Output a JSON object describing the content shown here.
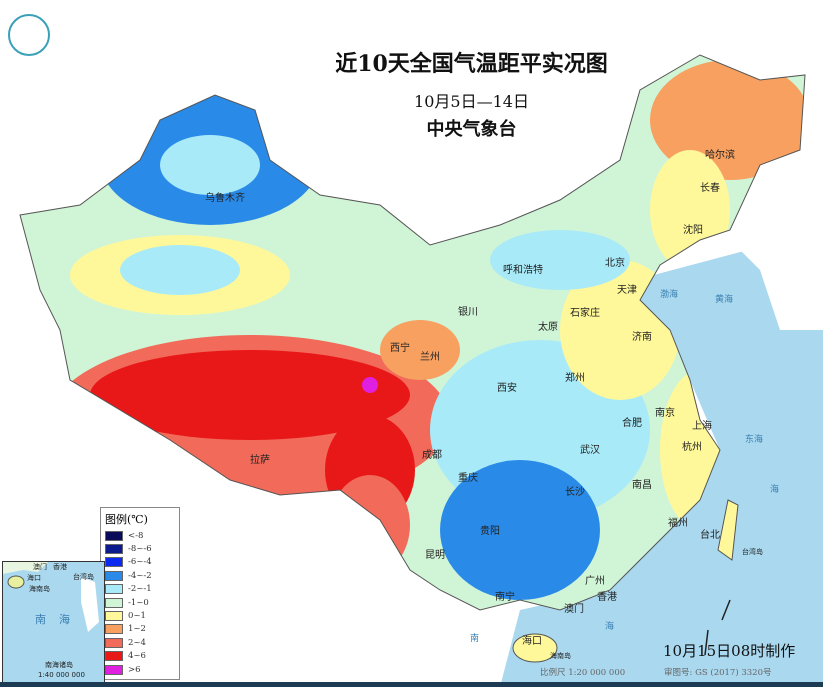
{
  "header": {
    "title": "近10天全国气温距平实况图",
    "date_range": "10月5日—14日",
    "issuer": "中央气象台"
  },
  "logo_icon": "cma-logo-icon",
  "legend": {
    "title": "图例(℃)",
    "items": [
      {
        "label": "<-8",
        "color": "#0a0a5a"
      },
      {
        "label": "-8~-6",
        "color": "#0b1a8c"
      },
      {
        "label": "-6~-4",
        "color": "#0a2af0"
      },
      {
        "label": "-4~-2",
        "color": "#2a8ae8"
      },
      {
        "label": "-2~-1",
        "color": "#a8eaf8"
      },
      {
        "label": "-1~0",
        "color": "#d0f4d6"
      },
      {
        "label": "0~1",
        "color": "#fff89a"
      },
      {
        "label": "1~2",
        "color": "#f7a060"
      },
      {
        "label": "2~4",
        "color": "#f26a5a"
      },
      {
        "label": "4~6",
        "color": "#e81818"
      },
      {
        "label": ">6",
        "color": "#e020e0"
      }
    ]
  },
  "cities": [
    "乌鲁木齐",
    "哈尔滨",
    "长春",
    "沈阳",
    "呼和浩特",
    "北京",
    "天津",
    "石家庄",
    "太原",
    "银川",
    "西宁",
    "兰州",
    "济南",
    "郑州",
    "西安",
    "合肥",
    "南京",
    "上海",
    "杭州",
    "武汉",
    "成都",
    "重庆",
    "拉萨",
    "长沙",
    "南昌",
    "贵阳",
    "福州",
    "台北",
    "昆明",
    "南宁",
    "广州",
    "香港",
    "澳门",
    "海口"
  ],
  "seas": [
    "渤海",
    "黄海",
    "东海",
    "海",
    "南",
    "海"
  ],
  "islands": [
    "海南岛",
    "台湾岛"
  ],
  "inset": {
    "labels": [
      "澳门",
      "香港",
      "海口",
      "海南岛",
      "台湾岛",
      "南",
      "海",
      "南海诸岛"
    ],
    "scale": "1:40 000 000"
  },
  "footer": {
    "made": "10月15日08时制作",
    "scale": "比例尺 1:20 000 000",
    "approval": "审图号: GS (2017) 3320号"
  },
  "sea_color": "#a9d8ef"
}
